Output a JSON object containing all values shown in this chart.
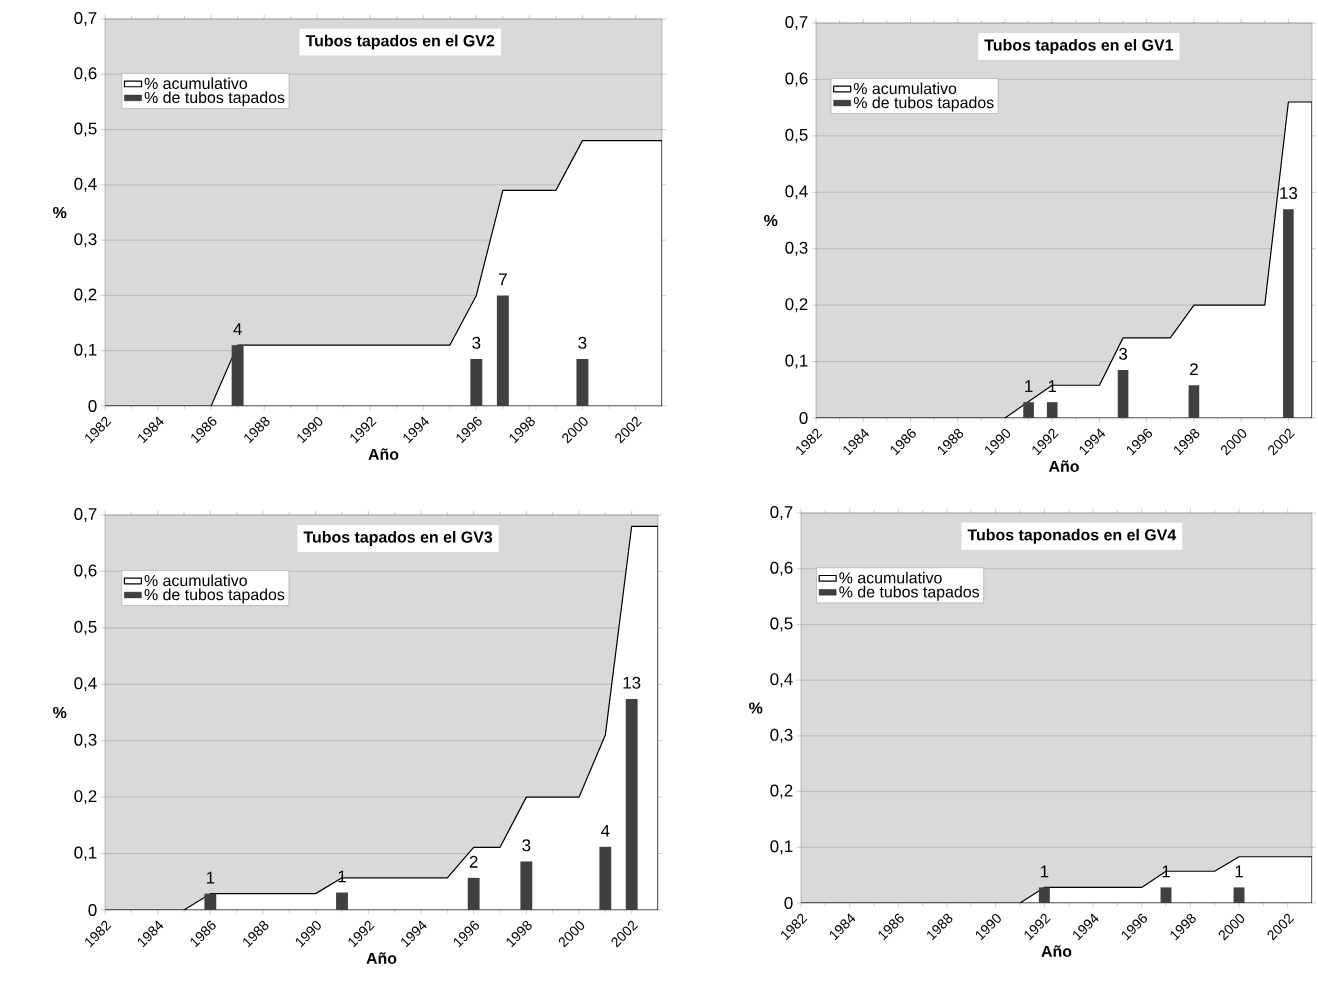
{
  "chart_data": [
    {
      "type": "bar",
      "title": "Tubos tapados en el GV2",
      "xlabel": "Año",
      "ylabel": "%",
      "xlim": [
        1982,
        2003
      ],
      "xticks": [
        1982,
        1984,
        1986,
        1988,
        1990,
        1992,
        1994,
        1996,
        1998,
        2000,
        2002
      ],
      "ylim": [
        0,
        0.7
      ],
      "yticks": [
        0,
        {
          "value": 0.1,
          "label": "0,1"
        },
        {
          "value": 0.2,
          "label": "0,2"
        },
        {
          "value": 0.3,
          "label": "0,3"
        },
        {
          "value": 0.4,
          "label": "0,4"
        },
        {
          "value": 0.5,
          "label": "0,5"
        },
        {
          "value": 0.6,
          "label": "0,6"
        },
        {
          "value": 0.7,
          "label": "0,7"
        }
      ],
      "grid": "y",
      "legend": "top left",
      "series": [
        {
          "type": "area",
          "name": "% acumulativo",
          "color": "#ffffff",
          "x": [
            1982,
            1986,
            1987,
            1995,
            1996,
            1997,
            1999,
            2000,
            2003
          ],
          "values": [
            0,
            0,
            0.11,
            0.11,
            0.2,
            0.39,
            0.39,
            0.48,
            0.48
          ]
        },
        {
          "name": "% de tubos tapados",
          "color": "#404040",
          "x": [
            1987,
            1996,
            1997,
            2000
          ],
          "values": [
            0.11,
            0.085,
            0.2,
            0.085
          ]
        }
      ],
      "annotations": [
        {
          "text": "4",
          "x": 1987,
          "y": 0.11
        },
        {
          "text": "3",
          "x": 1996,
          "y": 0.085
        },
        {
          "text": "7",
          "x": 1997,
          "y": 0.2
        },
        {
          "text": "3",
          "x": 2000,
          "y": 0.085
        }
      ]
    },
    {
      "type": "bar",
      "title": "Tubos tapados en el GV1",
      "xlabel": "Año",
      "ylabel": "%",
      "xlim": [
        1982,
        2003
      ],
      "xticks": [
        1982,
        1984,
        1986,
        1988,
        1990,
        1992,
        1994,
        1996,
        1998,
        2000,
        2002
      ],
      "ylim": [
        0,
        0.7
      ],
      "yticks": [
        0,
        {
          "value": 0.1,
          "label": "0,1"
        },
        {
          "value": 0.2,
          "label": "0,2"
        },
        {
          "value": 0.3,
          "label": "0,3"
        },
        {
          "value": 0.4,
          "label": "0,4"
        },
        {
          "value": 0.5,
          "label": "0,5"
        },
        {
          "value": 0.6,
          "label": "0,6"
        },
        {
          "value": 0.7,
          "label": "0,7"
        }
      ],
      "grid": "y",
      "legend": "top left",
      "series": [
        {
          "type": "area",
          "name": "% acumulativo",
          "color": "#ffffff",
          "x": [
            1982,
            1990,
            1992,
            1994,
            1995,
            1997,
            1998,
            2001,
            2002,
            2003
          ],
          "values": [
            0,
            0,
            0.058,
            0.058,
            0.142,
            0.142,
            0.2,
            0.2,
            0.56,
            0.56
          ]
        },
        {
          "name": "% de tubos tapados",
          "color": "#404040",
          "x": [
            1991,
            1992,
            1995,
            1998,
            2002
          ],
          "values": [
            0.028,
            0.028,
            0.085,
            0.058,
            0.37
          ]
        }
      ],
      "annotations": [
        {
          "text": "1",
          "x": 1991,
          "y": 0.028
        },
        {
          "text": "1",
          "x": 1992,
          "y": 0.028
        },
        {
          "text": "3",
          "x": 1995,
          "y": 0.085
        },
        {
          "text": "2",
          "x": 1998,
          "y": 0.058
        },
        {
          "text": "13",
          "x": 2002,
          "y": 0.37
        }
      ]
    },
    {
      "type": "bar",
      "title": "Tubos tapados en el GV3",
      "xlabel": "Año",
      "ylabel": "%",
      "xlim": [
        1982,
        2003
      ],
      "xticks": [
        1982,
        1984,
        1986,
        1988,
        1990,
        1992,
        1994,
        1996,
        1998,
        2000,
        2002
      ],
      "ylim": [
        0,
        0.7
      ],
      "yticks": [
        0,
        {
          "value": 0.1,
          "label": "0,1"
        },
        {
          "value": 0.2,
          "label": "0,2"
        },
        {
          "value": 0.3,
          "label": "0,3"
        },
        {
          "value": 0.4,
          "label": "0,4"
        },
        {
          "value": 0.5,
          "label": "0,5"
        },
        {
          "value": 0.6,
          "label": "0,6"
        },
        {
          "value": 0.7,
          "label": "0,7"
        }
      ],
      "grid": "y",
      "legend": "top left",
      "series": [
        {
          "type": "area",
          "name": "% acumulativo",
          "color": "#ffffff",
          "x": [
            1982,
            1985,
            1986,
            1990,
            1991,
            1995,
            1996,
            1997,
            1998,
            2000,
            2001,
            2002,
            2003
          ],
          "values": [
            0,
            0,
            0.029,
            0.029,
            0.057,
            0.057,
            0.111,
            0.111,
            0.2,
            0.2,
            0.31,
            0.68,
            0.68
          ]
        },
        {
          "name": "% de tubos tapados",
          "color": "#404040",
          "x": [
            1986,
            1991,
            1996,
            1998,
            2001,
            2002
          ],
          "values": [
            0.029,
            0.031,
            0.057,
            0.086,
            0.112,
            0.374
          ]
        }
      ],
      "annotations": [
        {
          "text": "1",
          "x": 1986,
          "y": 0.029
        },
        {
          "text": "1",
          "x": 1991,
          "y": 0.031
        },
        {
          "text": "2",
          "x": 1996,
          "y": 0.057
        },
        {
          "text": "3",
          "x": 1998,
          "y": 0.086
        },
        {
          "text": "4",
          "x": 2001,
          "y": 0.112
        },
        {
          "text": "13",
          "x": 2002,
          "y": 0.374
        }
      ]
    },
    {
      "type": "bar",
      "title": "Tubos taponados en el GV4",
      "xlabel": "Año",
      "ylabel": "%",
      "xlim": [
        1982,
        2003
      ],
      "xticks": [
        1982,
        1984,
        1986,
        1988,
        1990,
        1992,
        1994,
        1996,
        1998,
        2000,
        2002
      ],
      "ylim": [
        0,
        0.7
      ],
      "yticks": [
        0,
        {
          "value": 0.1,
          "label": "0,1"
        },
        {
          "value": 0.2,
          "label": "0,2"
        },
        {
          "value": 0.3,
          "label": "0,3"
        },
        {
          "value": 0.4,
          "label": "0,4"
        },
        {
          "value": 0.5,
          "label": "0,5"
        },
        {
          "value": 0.6,
          "label": "0,6"
        },
        {
          "value": 0.7,
          "label": "0,7"
        }
      ],
      "grid": "y",
      "legend": "top left",
      "series": [
        {
          "type": "area",
          "name": "% acumulativo",
          "color": "#ffffff",
          "x": [
            1982,
            1991,
            1992,
            1996,
            1997,
            1999,
            2000,
            2003
          ],
          "values": [
            0,
            0,
            0.028,
            0.028,
            0.057,
            0.057,
            0.083,
            0.083
          ]
        },
        {
          "name": "% de tubos tapados",
          "color": "#404040",
          "x": [
            1992,
            1997,
            2000
          ],
          "values": [
            0.028,
            0.028,
            0.028
          ]
        }
      ],
      "annotations": [
        {
          "text": "1",
          "x": 1992,
          "y": 0.028
        },
        {
          "text": "1",
          "x": 1997,
          "y": 0.028
        },
        {
          "text": "1",
          "x": 2000,
          "y": 0.028
        }
      ]
    }
  ]
}
